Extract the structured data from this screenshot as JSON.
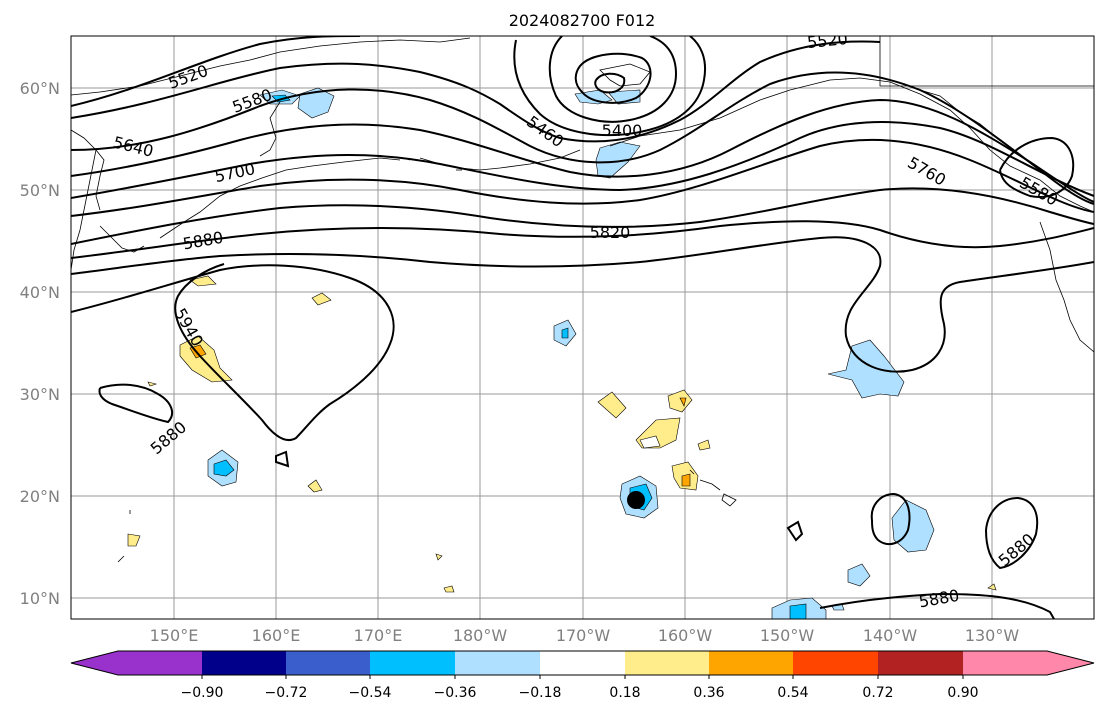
{
  "title": "2024082700 F012",
  "lat_labels": [
    "60°N",
    "50°N",
    "40°N",
    "30°N",
    "20°N",
    "10°N"
  ],
  "lon_labels": [
    "150°E",
    "160°E",
    "170°E",
    "180°W",
    "170°W",
    "160°W",
    "150°W",
    "140°W",
    "130°W"
  ],
  "contour_labels": [
    "5520",
    "5580",
    "5640",
    "5700",
    "5880",
    "5940",
    "5880",
    "5460",
    "5400",
    "5520",
    "5820",
    "5760",
    "5580",
    "5880",
    "5880",
    "5880"
  ],
  "colorbar": {
    "tick_labels": [
      "−0.90",
      "−0.72",
      "−0.54",
      "−0.36",
      "−0.18",
      "0.18",
      "0.36",
      "0.54",
      "0.72",
      "0.90"
    ],
    "colors": [
      "#9932cc",
      "#00008b",
      "#3a5fcd",
      "#00bfff",
      "#b0e0ff",
      "#ffffff",
      "#ffec8b",
      "#ffa500",
      "#ff4500",
      "#b22222",
      "#ff88aa"
    ]
  }
}
